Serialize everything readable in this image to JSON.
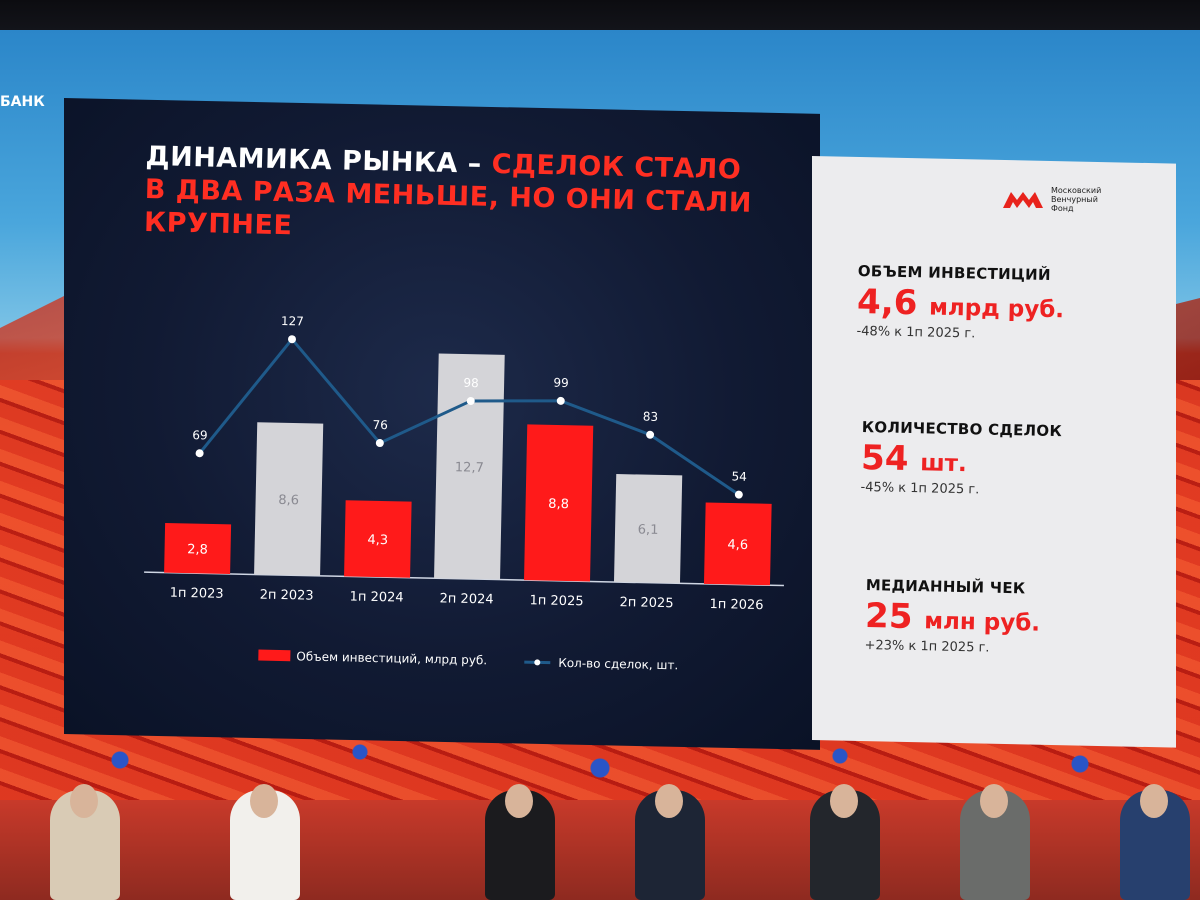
{
  "background": {
    "bank_text": "БАНК"
  },
  "slide": {
    "title_white": "ДИНАМИКА РЫНКА –",
    "title_red_1": "СДЕЛОК СТАЛО",
    "title_red_2": "В ДВА РАЗА МЕНЬШЕ, НО ОНИ СТАЛИ",
    "title_red_3": "КРУПНЕЕ",
    "logo_lines": [
      "Московский",
      "Венчурный",
      "Фонд"
    ]
  },
  "stats": [
    {
      "label": "ОБЪЕМ ИНВЕСТИЦИЙ",
      "value": "4,6",
      "unit": "млрд руб.",
      "note": "-48% к 1п 2025 г."
    },
    {
      "label": "КОЛИЧЕСТВО СДЕЛОК",
      "value": "54",
      "unit": "шт.",
      "note": "-45% к 1п 2025 г."
    },
    {
      "label": "МЕДИАННЫЙ ЧЕК",
      "value": "25",
      "unit": "млн руб.",
      "note": "+23% к 1п 2025 г."
    }
  ],
  "colors": {
    "red": "#ff1a1a",
    "grey": "#d4d4d8",
    "line": "#1f5a8a",
    "white": "#ffffff"
  },
  "chart_data": {
    "type": "bar",
    "categories": [
      "1п 2023",
      "2п 2023",
      "1п 2024",
      "2п 2024",
      "1п 2025",
      "2п 2025",
      "1п 2026"
    ],
    "series": [
      {
        "name": "Объем инвестиций, млрд руб.",
        "type": "bar",
        "values": [
          2.8,
          8.6,
          4.3,
          12.7,
          8.8,
          6.1,
          4.6
        ],
        "labels": [
          "2,8",
          "8,6",
          "4,3",
          "12,7",
          "8,8",
          "6,1",
          "4,6"
        ],
        "colors": [
          "#ff1a1a",
          "#d4d4d8",
          "#ff1a1a",
          "#d4d4d8",
          "#ff1a1a",
          "#d4d4d8",
          "#ff1a1a"
        ]
      },
      {
        "name": "Кол-во сделок, шт.",
        "type": "line",
        "values": [
          69,
          127,
          76,
          98,
          99,
          83,
          54
        ],
        "labels": [
          "69",
          "127",
          "76",
          "98",
          "99",
          "83",
          "54"
        ]
      }
    ],
    "legend_position": "bottom",
    "grid": false
  }
}
